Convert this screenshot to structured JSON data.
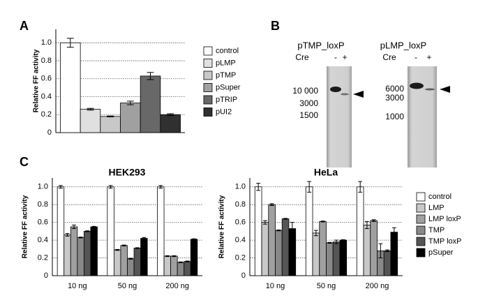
{
  "panels": {
    "a": "A",
    "b": "B",
    "c": "C"
  },
  "chart_data": [
    {
      "type": "bar",
      "y_label": "Relative FF activity",
      "ylim": [
        0,
        1.15
      ],
      "yticks": [
        0,
        0.2,
        0.4,
        0.6,
        0.8,
        {
          "value": 1,
          "label": "1.0"
        }
      ],
      "grid": true,
      "legend": "right",
      "series": [
        {
          "name": "control",
          "color": "#ffffff",
          "values": [
            1.0
          ],
          "errors": [
            0.05
          ]
        },
        {
          "name": "pLMP",
          "color": "#e0e0e0",
          "values": [
            0.26
          ],
          "errors": [
            0.01
          ]
        },
        {
          "name": "pTMP",
          "color": "#c8c8c8",
          "values": [
            0.18
          ],
          "errors": [
            0.005
          ]
        },
        {
          "name": "pSuper",
          "color": "#a0a0a0",
          "values": [
            0.33
          ],
          "errors": [
            0.02
          ]
        },
        {
          "name": "pTRIP",
          "color": "#686868",
          "values": [
            0.63
          ],
          "errors": [
            0.04
          ]
        },
        {
          "name": "pUI2",
          "color": "#303030",
          "values": [
            0.2
          ],
          "errors": [
            0.01
          ]
        }
      ]
    },
    {
      "type": "bar",
      "title": "HEK293",
      "y_label": "Relative FF activity",
      "categories": [
        "10 ng",
        "50 ng",
        "200 ng"
      ],
      "ylim": [
        0,
        1.1
      ],
      "yticks": [
        0,
        0.2,
        0.4,
        0.6,
        0.8,
        {
          "value": 1,
          "label": "1.0"
        }
      ],
      "grid": true,
      "series": [
        {
          "color": "#ffffff",
          "values": [
            1.0,
            1.0,
            1.0
          ],
          "errors": [
            0.015,
            0.015,
            0.015
          ]
        },
        {
          "color": "#c8c8c8",
          "values": [
            0.46,
            0.29,
            0.22
          ],
          "errors": [
            0.015,
            0.005,
            0.005
          ]
        },
        {
          "color": "#a0a0a0",
          "values": [
            0.55,
            0.34,
            0.22
          ],
          "errors": [
            0.02,
            0.005,
            0.005
          ]
        },
        {
          "color": "#888888",
          "values": [
            0.43,
            0.19,
            0.15
          ],
          "errors": [
            0.005,
            0.005,
            0.005
          ]
        },
        {
          "color": "#555555",
          "values": [
            0.5,
            0.31,
            0.16
          ],
          "errors": [
            0.005,
            0.005,
            0.005
          ]
        },
        {
          "color": "#000000",
          "values": [
            0.55,
            0.42,
            0.41
          ],
          "errors": [
            0.005,
            0.01,
            0.005
          ]
        }
      ]
    },
    {
      "type": "bar",
      "title": "HeLa",
      "y_label": "Relative FF activity",
      "categories": [
        "10 ng",
        "50 ng",
        "200 ng"
      ],
      "ylim": [
        0,
        1.1
      ],
      "yticks": [
        0,
        0.2,
        0.4,
        0.6,
        0.8,
        {
          "value": 1,
          "label": "1.0"
        }
      ],
      "grid": true,
      "legend": "right",
      "series": [
        {
          "name": "control",
          "color": "#ffffff",
          "values": [
            1.0,
            1.0,
            1.0
          ],
          "errors": [
            0.04,
            0.06,
            0.06
          ]
        },
        {
          "name": "LMP",
          "color": "#c8c8c8",
          "values": [
            0.6,
            0.48,
            0.57
          ],
          "errors": [
            0.02,
            0.03,
            0.04
          ]
        },
        {
          "name": "LMP loxP",
          "color": "#a0a0a0",
          "values": [
            0.8,
            0.61,
            0.62
          ],
          "errors": [
            0.01,
            0.005,
            0.01
          ]
        },
        {
          "name": "TMP",
          "color": "#888888",
          "values": [
            0.51,
            0.37,
            0.28
          ],
          "errors": [
            0.005,
            0.005,
            0.08
          ]
        },
        {
          "name": "TMP loxP",
          "color": "#555555",
          "values": [
            0.64,
            0.38,
            0.28
          ],
          "errors": [
            0.005,
            0.02,
            0.01
          ]
        },
        {
          "name": "pSuper",
          "color": "#000000",
          "values": [
            0.53,
            0.4,
            0.49
          ],
          "errors": [
            0.07,
            0.005,
            0.05
          ]
        }
      ]
    }
  ],
  "gels": [
    {
      "title": "pTMP_loxP",
      "cre_label": "Cre",
      "lanes": [
        "-",
        "+"
      ],
      "markers": [
        "10 000",
        "3000",
        "1500"
      ]
    },
    {
      "title": "pLMP_loxP",
      "cre_label": "Cre",
      "lanes": [
        "-",
        "+"
      ],
      "markers": [
        "6000",
        "3000",
        "1000"
      ]
    }
  ]
}
